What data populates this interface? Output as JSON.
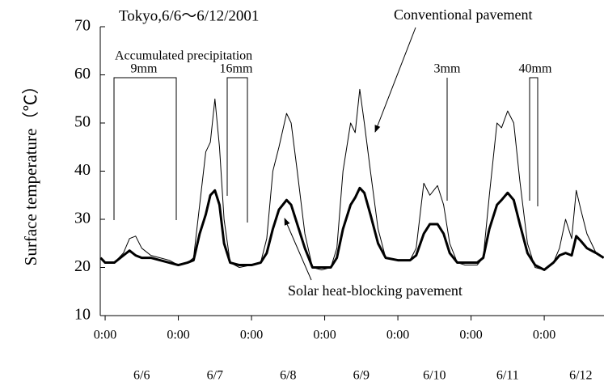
{
  "chart_data": {
    "type": "line",
    "title": "Tokyo,6/6〜6/12/2001",
    "y_label": "Surface temperature（℃）",
    "annotations": {
      "precipitation": "Accumulated precipitation",
      "rain": [
        "9mm",
        "16mm",
        "3mm",
        "40mm"
      ],
      "conventional": "Conventional pavement",
      "solar": "Solar heat-blocking pavement"
    },
    "x": [
      -1.5,
      0,
      3,
      6,
      8,
      10,
      12,
      15,
      18,
      21,
      24,
      27,
      29,
      31,
      33,
      34.5,
      36,
      37.5,
      39,
      41,
      44,
      48,
      51,
      53,
      55,
      57,
      59.5,
      61,
      63,
      65.5,
      68,
      71,
      74,
      76,
      78,
      80.5,
      82,
      83.5,
      85,
      87,
      89.5,
      92,
      96,
      100,
      102,
      104.5,
      106.5,
      109,
      111,
      113,
      115.5,
      118,
      122,
      124,
      126,
      128.5,
      130,
      132,
      134,
      136,
      138.5,
      141,
      144,
      147,
      149,
      151,
      153,
      154.5,
      156,
      158,
      161,
      163.5
    ],
    "series": [
      {
        "color": "#000000",
        "line_width": 1,
        "values": [
          22,
          21,
          21,
          23,
          26,
          26.5,
          24,
          22.5,
          22,
          21.5,
          20.5,
          21,
          22,
          33,
          44,
          46,
          55,
          45,
          30,
          21,
          20,
          20.5,
          21,
          26,
          40,
          45,
          52,
          50,
          40,
          27,
          20,
          19.5,
          20,
          24,
          40,
          50,
          48,
          57,
          50,
          40,
          28,
          22,
          21.5,
          21.5,
          24,
          37.5,
          35,
          37,
          33,
          25,
          21,
          20.5,
          20.5,
          22,
          35,
          50,
          49,
          52.5,
          50,
          38,
          25,
          20,
          19.5,
          21,
          24,
          30,
          26,
          36,
          32,
          27,
          23,
          22
        ]
      },
      {
        "color": "#000000",
        "line_width": 3,
        "values": [
          22,
          21,
          21,
          22.5,
          23.5,
          22.5,
          22,
          22,
          21.5,
          21,
          20.5,
          21,
          21.5,
          27,
          31,
          35,
          36,
          33,
          25,
          21,
          20.5,
          20.5,
          21,
          23,
          28,
          32,
          34,
          33,
          29,
          24,
          20,
          20,
          20,
          22,
          28,
          33,
          34.5,
          36.5,
          35.5,
          31,
          25,
          22,
          21.5,
          21.5,
          22.5,
          27,
          29,
          29,
          27,
          23,
          21,
          21,
          21,
          22,
          28,
          33,
          34,
          35.5,
          34,
          29,
          23,
          20.5,
          19.5,
          21,
          22.5,
          23,
          22.5,
          26.5,
          25.5,
          24,
          23,
          22
        ]
      }
    ],
    "xlim": [
      -1.6,
      163.6
    ],
    "xticks": [
      {
        "value": 0,
        "label": "0:00"
      },
      {
        "value": 24,
        "label": "0:00"
      },
      {
        "value": 48,
        "label": "0:00"
      },
      {
        "value": 72,
        "label": "0:00"
      },
      {
        "value": 96,
        "label": "0:00"
      },
      {
        "value": 120,
        "label": "0:00"
      },
      {
        "value": 144,
        "label": "0:00"
      }
    ],
    "day_labels": [
      {
        "value": 12,
        "label": "6/6"
      },
      {
        "value": 36,
        "label": "6/7"
      },
      {
        "value": 60,
        "label": "6/8"
      },
      {
        "value": 84,
        "label": "6/9"
      },
      {
        "value": 108,
        "label": "6/10"
      },
      {
        "value": 132,
        "label": "6/11"
      },
      {
        "value": 156,
        "label": "6/12"
      }
    ],
    "ylim": [
      10,
      70
    ],
    "yticks": [
      10,
      20,
      30,
      40,
      50,
      60,
      70
    ],
    "grid": false
  }
}
